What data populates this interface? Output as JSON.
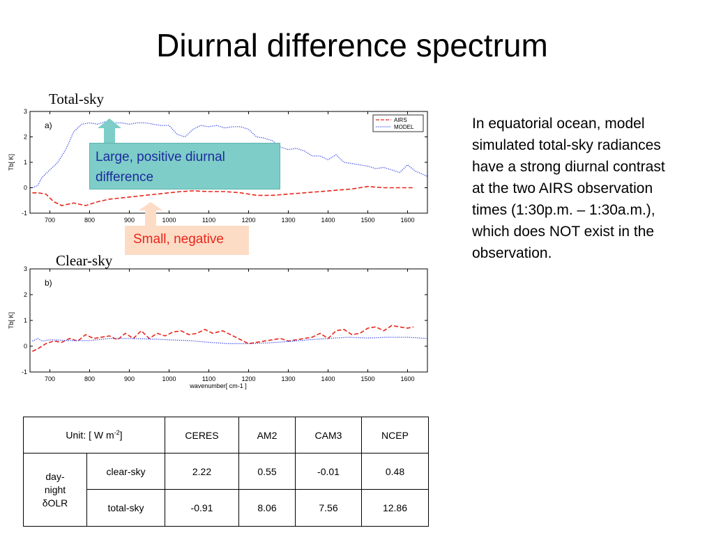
{
  "slide": {
    "title": "Diurnal difference spectrum",
    "panel_top_label": "Total-sky",
    "panel_bottom_label": "Clear-sky",
    "body_lines": [
      "In equatorial ocean, model",
      "simulated total-sky radiances",
      "have a strong diurnal contrast",
      "at the two AIRS observation",
      "times (1:30p.m. – 1:30a.m.),",
      "which does NOT exist in the",
      "observation."
    ],
    "callout_large_lines": [
      "Large, positive diurnal",
      "difference"
    ],
    "callout_small": "Small, negative",
    "colors": {
      "airs": "#e8251a",
      "model": "#2d3ee6",
      "callout_large": "#7ecdc8",
      "callout_small": "#fddcc6",
      "callout_large_text": "#1d2b9e"
    }
  },
  "chart_data": [
    {
      "type": "line",
      "panel_tag": "a)",
      "xlim": [
        650,
        1650
      ],
      "ylim": [
        -1,
        3
      ],
      "xticks": [
        "700",
        "800",
        "900",
        "1000",
        "1100",
        "1200",
        "1300",
        "1400",
        "1500",
        "1600"
      ],
      "yticks": [
        "-1",
        "0",
        "1",
        "2",
        "3"
      ],
      "ylabel": "Tb[ K]",
      "xlabel": "",
      "legend": {
        "placement": "top-right",
        "entries": [
          "AIRS",
          "MODEL"
        ]
      },
      "series": [
        {
          "name": "AIRS",
          "style": "dashed",
          "x": [
            656,
            670,
            690,
            710,
            730,
            760,
            790,
            820,
            850,
            880,
            910,
            940,
            970,
            1000,
            1030,
            1060,
            1100,
            1140,
            1180,
            1220,
            1260,
            1300,
            1340,
            1380,
            1420,
            1460,
            1500,
            1540,
            1580,
            1615
          ],
          "y": [
            -0.2,
            -0.2,
            -0.25,
            -0.55,
            -0.7,
            -0.6,
            -0.7,
            -0.55,
            -0.45,
            -0.4,
            -0.35,
            -0.3,
            -0.25,
            -0.2,
            -0.15,
            -0.12,
            -0.15,
            -0.15,
            -0.2,
            -0.3,
            -0.3,
            -0.25,
            -0.2,
            -0.15,
            -0.1,
            -0.05,
            0.05,
            0.0,
            0.0,
            0.0
          ]
        },
        {
          "name": "MODEL",
          "style": "dotted",
          "x": [
            656,
            670,
            680,
            700,
            720,
            740,
            760,
            780,
            800,
            820,
            840,
            860,
            880,
            900,
            920,
            940,
            960,
            980,
            1000,
            1020,
            1040,
            1060,
            1080,
            1100,
            1120,
            1140,
            1160,
            1180,
            1200,
            1220,
            1240,
            1260,
            1280,
            1300,
            1320,
            1340,
            1360,
            1380,
            1400,
            1420,
            1440,
            1460,
            1480,
            1500,
            1520,
            1540,
            1560,
            1580,
            1600,
            1620,
            1650
          ],
          "y": [
            0.0,
            0.1,
            0.4,
            0.7,
            1.0,
            1.5,
            2.2,
            2.5,
            2.55,
            2.5,
            2.6,
            2.55,
            2.55,
            2.5,
            2.55,
            2.55,
            2.5,
            2.45,
            2.45,
            2.1,
            2.0,
            2.3,
            2.45,
            2.4,
            2.45,
            2.35,
            2.4,
            2.4,
            2.3,
            2.0,
            1.95,
            1.85,
            1.6,
            1.5,
            1.55,
            1.45,
            1.25,
            1.25,
            1.1,
            1.3,
            1.0,
            0.95,
            0.9,
            0.85,
            0.75,
            0.8,
            0.7,
            0.6,
            0.9,
            0.65,
            0.45
          ]
        }
      ]
    },
    {
      "type": "line",
      "panel_tag": "b)",
      "xlim": [
        650,
        1650
      ],
      "ylim": [
        -1,
        3
      ],
      "xticks": [
        "700",
        "800",
        "900",
        "1000",
        "1100",
        "1200",
        "1300",
        "1400",
        "1500",
        "1600"
      ],
      "yticks": [
        "-1",
        "0",
        "1",
        "2",
        "3"
      ],
      "ylabel": "Tb[ K]",
      "xlabel": "wavenumber[ cm-1 ]",
      "series": [
        {
          "name": "AIRS",
          "style": "dashed",
          "x": [
            656,
            670,
            690,
            710,
            730,
            750,
            770,
            790,
            810,
            830,
            850,
            870,
            890,
            910,
            930,
            950,
            970,
            990,
            1010,
            1030,
            1050,
            1070,
            1090,
            1110,
            1135,
            1200,
            1220,
            1240,
            1260,
            1280,
            1300,
            1320,
            1340,
            1360,
            1380,
            1400,
            1420,
            1440,
            1460,
            1480,
            1500,
            1520,
            1540,
            1560,
            1580,
            1600,
            1615
          ],
          "y": [
            -0.2,
            -0.1,
            0.1,
            0.2,
            0.15,
            0.3,
            0.2,
            0.45,
            0.3,
            0.35,
            0.4,
            0.25,
            0.5,
            0.3,
            0.6,
            0.3,
            0.5,
            0.4,
            0.55,
            0.6,
            0.45,
            0.5,
            0.65,
            0.5,
            0.6,
            0.1,
            0.15,
            0.2,
            0.25,
            0.3,
            0.2,
            0.25,
            0.3,
            0.35,
            0.5,
            0.3,
            0.6,
            0.65,
            0.45,
            0.5,
            0.7,
            0.75,
            0.6,
            0.8,
            0.75,
            0.7,
            0.75
          ]
        },
        {
          "name": "MODEL",
          "style": "dotted",
          "x": [
            656,
            670,
            680,
            700,
            750,
            800,
            850,
            900,
            950,
            1000,
            1050,
            1100,
            1150,
            1200,
            1250,
            1300,
            1350,
            1400,
            1450,
            1500,
            1550,
            1600,
            1650
          ],
          "y": [
            0.2,
            0.3,
            0.2,
            0.25,
            0.22,
            0.22,
            0.3,
            0.3,
            0.28,
            0.25,
            0.22,
            0.15,
            0.1,
            0.1,
            0.13,
            0.18,
            0.25,
            0.3,
            0.35,
            0.32,
            0.35,
            0.35,
            0.3
          ]
        }
      ]
    }
  ],
  "table": {
    "unit_label": "Unit: [ W m",
    "unit_sup": "-2",
    "unit_close": "]",
    "columns": [
      "CERES",
      "AM2",
      "CAM3",
      "NCEP"
    ],
    "row_group_lines": [
      "day-",
      "night",
      "δOLR"
    ],
    "rows": [
      {
        "label": "clear-sky",
        "values": [
          "2.22",
          "0.55",
          "-0.01",
          "0.48"
        ]
      },
      {
        "label": "total-sky",
        "values": [
          "-0.91",
          "8.06",
          "7.56",
          "12.86"
        ]
      }
    ]
  }
}
